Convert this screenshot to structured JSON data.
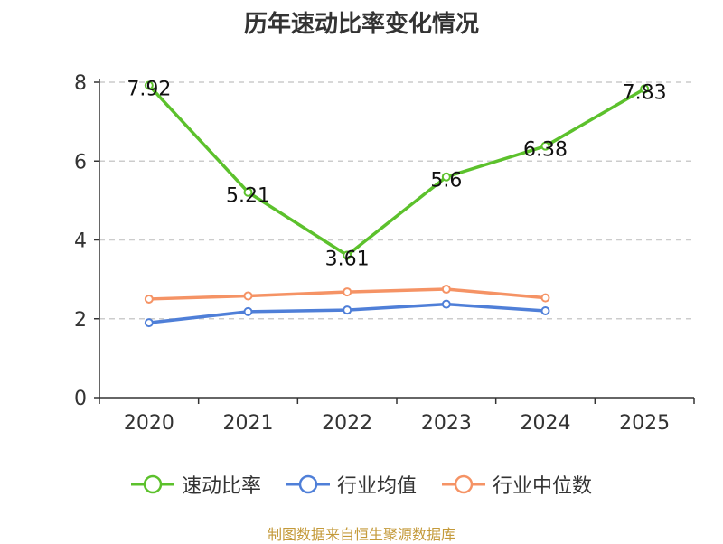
{
  "title": "历年速动比率变化情况",
  "source": "制图数据来自恒生聚源数据库",
  "chart_data": {
    "type": "line",
    "x": [
      "2020",
      "2021",
      "2022",
      "2023",
      "2024",
      "2025"
    ],
    "ylim": [
      0,
      8
    ],
    "yticks": [
      0,
      2,
      4,
      6,
      8
    ],
    "grid": true,
    "legend_position": "bottom",
    "series": [
      {
        "name": "速动比率",
        "color": "#5cc12c",
        "values": [
          7.92,
          5.21,
          3.61,
          5.6,
          6.38,
          7.83
        ],
        "labels": [
          "7.92",
          "5.21",
          "3.61",
          "5.6",
          "6.38",
          "7.83"
        ]
      },
      {
        "name": "行业均值",
        "color": "#4f7fd8",
        "values": [
          1.9,
          2.18,
          2.22,
          2.37,
          2.2,
          null
        ]
      },
      {
        "name": "行业中位数",
        "color": "#f59365",
        "values": [
          2.5,
          2.58,
          2.68,
          2.75,
          2.53,
          null
        ]
      }
    ]
  }
}
